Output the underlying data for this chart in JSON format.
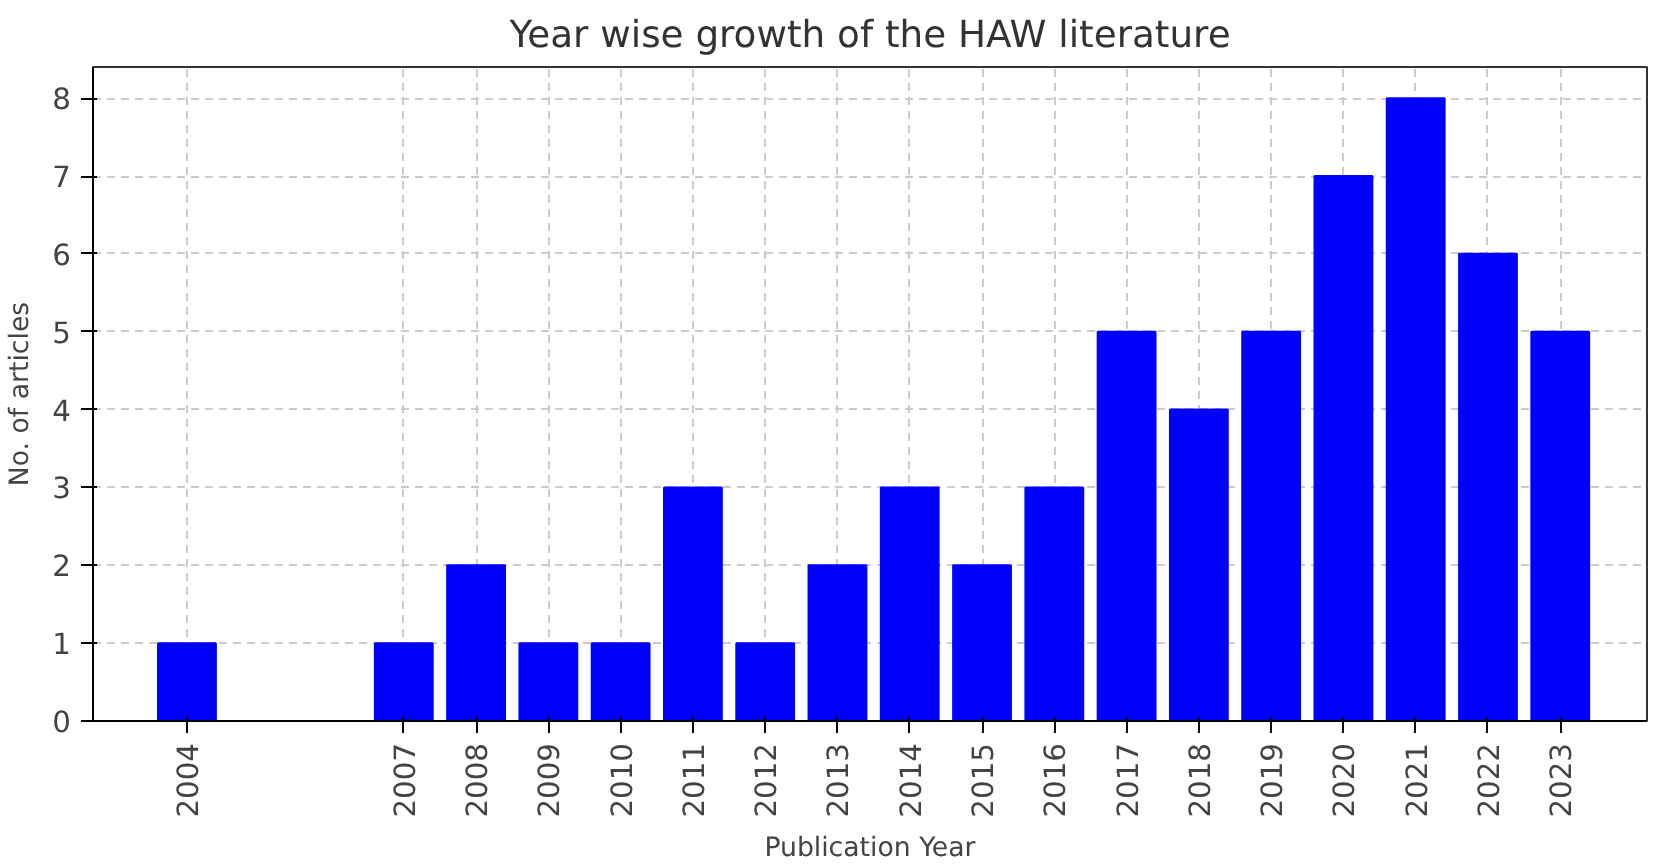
{
  "chart_data": {
    "type": "bar",
    "title": "Year wise growth of the HAW literature",
    "xlabel": "Publication Year",
    "ylabel": "No. of articles",
    "x": [
      2004,
      2007,
      2008,
      2009,
      2010,
      2011,
      2012,
      2013,
      2014,
      2015,
      2016,
      2017,
      2018,
      2019,
      2020,
      2021,
      2022,
      2023
    ],
    "values": [
      1,
      1,
      2,
      1,
      1,
      3,
      1,
      2,
      3,
      2,
      3,
      5,
      4,
      5,
      7,
      8,
      6,
      5
    ],
    "color": "#0000ff",
    "xlim": [
      2002.7,
      2024.2
    ],
    "xticks": [
      2004,
      2007,
      2008,
      2009,
      2010,
      2011,
      2012,
      2013,
      2014,
      2015,
      2016,
      2017,
      2018,
      2019,
      2020,
      2021,
      2022,
      2023
    ],
    "ylim": [
      0,
      8.4
    ],
    "yticks": [
      0,
      1,
      2,
      3,
      4,
      5,
      6,
      7,
      8
    ],
    "grid": true
  }
}
